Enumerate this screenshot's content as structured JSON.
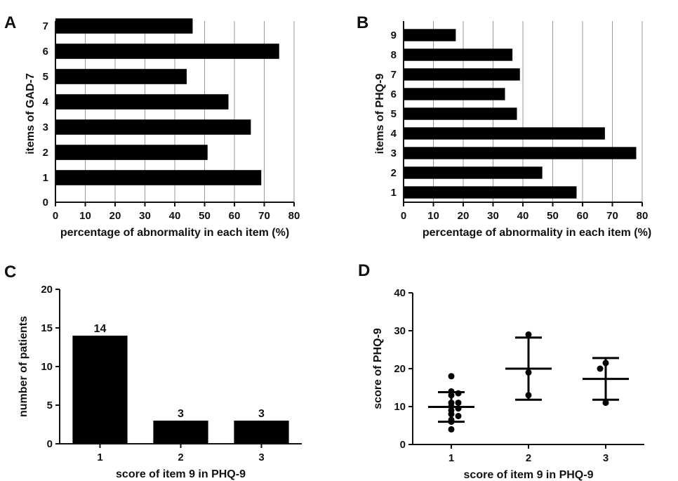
{
  "chart_data": [
    {
      "panel": "A",
      "type": "bar",
      "orientation": "horizontal",
      "categories": [
        "1",
        "2",
        "3",
        "4",
        "5",
        "6",
        "7"
      ],
      "values": [
        69,
        51,
        65.5,
        58,
        44,
        75,
        46
      ],
      "xlabel": "percentage of abnormality in each item (%)",
      "ylabel": "items of GAD-7",
      "xlim": [
        0,
        80
      ],
      "xticks": [
        "0",
        "10",
        "20",
        "30",
        "40",
        "50",
        "60",
        "70",
        "80"
      ],
      "yzero_label": "0",
      "grid": "vertical"
    },
    {
      "panel": "B",
      "type": "bar",
      "orientation": "horizontal",
      "categories": [
        "1",
        "2",
        "3",
        "4",
        "5",
        "6",
        "7",
        "8",
        "9"
      ],
      "values": [
        58,
        46.5,
        78,
        67.5,
        38,
        34,
        39,
        36.5,
        17.5
      ],
      "xlabel": "percentage of abnormality in each item (%)",
      "ylabel": "items of PHQ-9",
      "xlim": [
        0,
        80
      ],
      "xticks": [
        "0",
        "10",
        "20",
        "30",
        "40",
        "50",
        "60",
        "70",
        "80"
      ],
      "grid": "vertical"
    },
    {
      "panel": "C",
      "type": "bar",
      "categories": [
        "1",
        "2",
        "3"
      ],
      "values": [
        14,
        3,
        3
      ],
      "data_labels": [
        "14",
        "3",
        "3"
      ],
      "xlabel": "score of item 9 in PHQ-9",
      "ylabel": "number of patients",
      "ylim": [
        0,
        20
      ],
      "yticks": [
        "0",
        "5",
        "10",
        "15",
        "20"
      ],
      "grid": "none"
    },
    {
      "panel": "D",
      "type": "scatter",
      "categories": [
        "1",
        "2",
        "3"
      ],
      "groups": [
        {
          "x": "1",
          "points": [
            18,
            14,
            13.5,
            13,
            11,
            11,
            10,
            9.5,
            9,
            8,
            7.5,
            6.5,
            6,
            4
          ],
          "mean": 9.9,
          "sd_range": [
            6,
            13.8
          ]
        },
        {
          "x": "2",
          "points": [
            29,
            19,
            13
          ],
          "mean": 20,
          "sd_range": [
            11.8,
            28.2
          ]
        },
        {
          "x": "3",
          "points": [
            21.5,
            20,
            11
          ],
          "mean": 17.3,
          "sd_range": [
            11.8,
            22.8
          ]
        }
      ],
      "xlabel": "score of item 9 in PHQ-9",
      "ylabel": "score of PHQ-9",
      "ylim": [
        0,
        40
      ],
      "yticks": [
        "0",
        "10",
        "20",
        "30",
        "40"
      ],
      "grid": "none"
    }
  ]
}
